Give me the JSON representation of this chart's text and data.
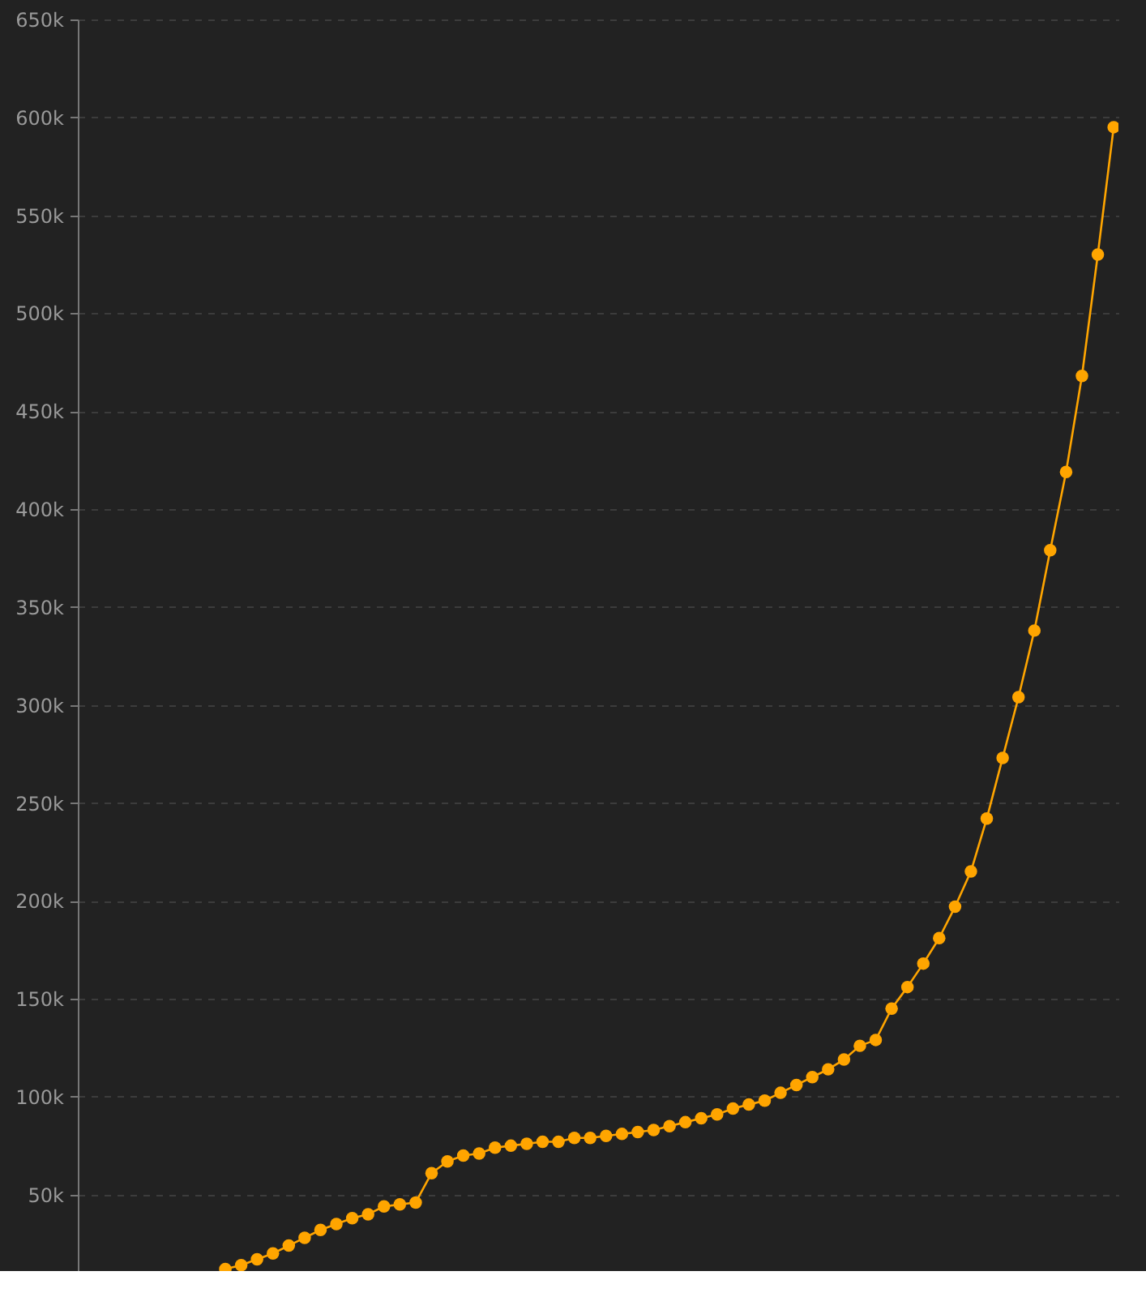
{
  "chart_data": {
    "type": "line",
    "categories": [
      null,
      null,
      null,
      null,
      null,
      null,
      null,
      null,
      null,
      null,
      null,
      null,
      null,
      null,
      null,
      null,
      null,
      null,
      null,
      null,
      null,
      null,
      null,
      null,
      null,
      null,
      null,
      null,
      null,
      null,
      null,
      null,
      null,
      null,
      null,
      null,
      null,
      null,
      null,
      null,
      null,
      null,
      null,
      null,
      null,
      null,
      null,
      null,
      null,
      null,
      null,
      null,
      null,
      null,
      null,
      null,
      null,
      null,
      null,
      null,
      null,
      null,
      null,
      null,
      null,
      null
    ],
    "series": [
      {
        "color": "#ffa500",
        "values": [
          null,
          null,
          null,
          null,
          null,
          null,
          null,
          null,
          null,
          12000,
          14000,
          17000,
          20000,
          24000,
          28000,
          32000,
          35000,
          38000,
          40000,
          44000,
          45000,
          46000,
          61000,
          67000,
          70000,
          71000,
          74000,
          75000,
          76000,
          77000,
          77000,
          79000,
          79000,
          80000,
          81000,
          82000,
          83000,
          85000,
          87000,
          89000,
          91000,
          94000,
          96000,
          98000,
          102000,
          106000,
          110000,
          114000,
          119000,
          126000,
          129000,
          145000,
          156000,
          168000,
          181000,
          197000,
          215000,
          242000,
          273000,
          304000,
          338000,
          379000,
          419000,
          468000,
          530000,
          595000
        ]
      }
    ],
    "ylim": [
      11000,
      650000
    ],
    "yticks": [
      {
        "value": 50000,
        "label": "50k"
      },
      {
        "value": 100000,
        "label": "100k"
      },
      {
        "value": 150000,
        "label": "150k"
      },
      {
        "value": 200000,
        "label": "200k"
      },
      {
        "value": 250000,
        "label": "250k"
      },
      {
        "value": 300000,
        "label": "300k"
      },
      {
        "value": 350000,
        "label": "350k"
      },
      {
        "value": 400000,
        "label": "400k"
      },
      {
        "value": 450000,
        "label": "450k"
      },
      {
        "value": 500000,
        "label": "500k"
      },
      {
        "value": 550000,
        "label": "550k"
      },
      {
        "value": 600000,
        "label": "600k"
      },
      {
        "value": 650000,
        "label": "650k"
      }
    ],
    "grid": "y",
    "marker": "circle",
    "line_style": "solid",
    "tick_labels": "y"
  }
}
